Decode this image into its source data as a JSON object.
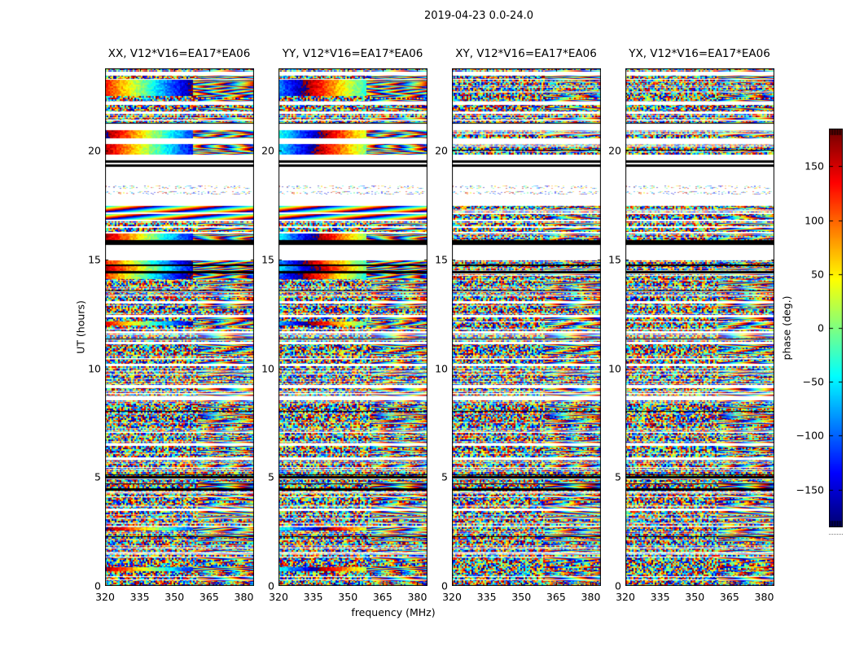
{
  "figure": {
    "title": "2019-04-23 0.0-24.0"
  },
  "chart_data": {
    "type": "heatmap",
    "title": "2019-04-23 0.0-24.0",
    "xlabel": "frequency (MHz)",
    "ylabel": "UT (hours)",
    "x_range": [
      320,
      384.4
    ],
    "xticks": [
      320,
      335,
      350,
      365,
      380
    ],
    "y_range": [
      0,
      23.78
    ],
    "yticks": [
      0,
      5,
      10,
      15,
      20
    ],
    "grid": false,
    "panels": [
      {
        "pol": "XX",
        "title": "XX, V12*V16=EA17*EA06"
      },
      {
        "pol": "YY",
        "title": "YY, V12*V16=EA17*EA06"
      },
      {
        "pol": "XY",
        "title": "XY, V12*V16=EA17*EA06"
      },
      {
        "pol": "YX",
        "title": "YX, V12*V16=EA17*EA06"
      }
    ],
    "colorbar": {
      "label": "phase (deg.)",
      "colormap": "jet",
      "range": [
        -185,
        185
      ],
      "ticks": [
        150,
        100,
        50,
        0,
        -50,
        -100,
        -150
      ],
      "tick_labels": [
        "150",
        "100",
        "50",
        "0",
        "−50",
        "−100",
        "−150"
      ]
    },
    "stripe_legend": {
      "n": "random phase noise (all panels)",
      "w": "white gap / no data",
      "b": "black row",
      "g": "coherent phase gradient with right-side fringes in XX and YY (noise in XY, YX)",
      "d": "diagonal phase fringes in XX and YY (noise in XY, YX)",
      "f": "faint sparse pale noise"
    },
    "stripes": [
      [
        23.78,
        23.63,
        "n"
      ],
      [
        23.63,
        23.45,
        "w"
      ],
      [
        23.45,
        23.3,
        "n"
      ],
      [
        23.3,
        23.26,
        "w"
      ],
      [
        23.26,
        22.51,
        "g"
      ],
      [
        22.51,
        22.25,
        "n"
      ],
      [
        22.25,
        22.1,
        "w"
      ],
      [
        22.1,
        21.8,
        "n"
      ],
      [
        21.8,
        21.69,
        "w"
      ],
      [
        21.69,
        21.24,
        "n"
      ],
      [
        21.24,
        20.94,
        "w"
      ],
      [
        20.94,
        20.57,
        "g"
      ],
      [
        20.57,
        20.31,
        "w"
      ],
      [
        20.31,
        19.82,
        "g"
      ],
      [
        19.82,
        19.56,
        "w"
      ],
      [
        19.56,
        19.45,
        "b"
      ],
      [
        19.45,
        19.37,
        "w"
      ],
      [
        19.37,
        19.26,
        "b"
      ],
      [
        19.26,
        18.4,
        "w"
      ],
      [
        18.4,
        18.25,
        "f"
      ],
      [
        18.25,
        18.14,
        "w"
      ],
      [
        18.14,
        17.99,
        "f"
      ],
      [
        17.99,
        17.46,
        "w"
      ],
      [
        17.46,
        17.16,
        "d"
      ],
      [
        17.16,
        17.09,
        "w"
      ],
      [
        17.09,
        16.83,
        "d"
      ],
      [
        16.83,
        16.75,
        "w"
      ],
      [
        16.75,
        16.53,
        "n"
      ],
      [
        16.53,
        16.45,
        "w"
      ],
      [
        16.45,
        16.27,
        "n"
      ],
      [
        16.27,
        16.19,
        "w"
      ],
      [
        16.19,
        15.89,
        "g"
      ],
      [
        15.89,
        15.67,
        "b"
      ],
      [
        15.67,
        14.96,
        "w"
      ],
      [
        14.96,
        14.77,
        "g"
      ],
      [
        14.77,
        14.7,
        "b"
      ],
      [
        14.7,
        14.47,
        "g"
      ],
      [
        14.47,
        14.36,
        "b"
      ],
      [
        14.36,
        14.1,
        "g"
      ],
      [
        14.1,
        13.91,
        "n"
      ],
      [
        13.91,
        13.09,
        "n"
      ],
      [
        13.09,
        12.98,
        "w"
      ],
      [
        12.98,
        12.45,
        "n"
      ],
      [
        12.45,
        12.34,
        "w"
      ],
      [
        12.34,
        12.15,
        "n"
      ],
      [
        12.15,
        11.97,
        "g"
      ],
      [
        11.97,
        11.7,
        "n"
      ],
      [
        11.7,
        11.59,
        "w"
      ],
      [
        11.59,
        10.21,
        "n"
      ],
      [
        10.21,
        10.1,
        "w"
      ],
      [
        10.1,
        9.24,
        "n"
      ],
      [
        9.24,
        9.09,
        "w"
      ],
      [
        9.09,
        8.71,
        "n"
      ],
      [
        8.71,
        8.53,
        "w"
      ],
      [
        8.53,
        7.48,
        "n"
      ],
      [
        7.48,
        6.55,
        "n"
      ],
      [
        6.55,
        6.43,
        "w"
      ],
      [
        6.43,
        5.91,
        "n"
      ],
      [
        5.91,
        5.8,
        "w"
      ],
      [
        5.8,
        5.05,
        "n"
      ],
      [
        5.05,
        4.94,
        "b"
      ],
      [
        4.94,
        4.49,
        "n"
      ],
      [
        4.49,
        4.38,
        "b"
      ],
      [
        4.38,
        3.55,
        "n"
      ],
      [
        3.55,
        3.44,
        "w"
      ],
      [
        3.44,
        2.69,
        "n"
      ],
      [
        2.69,
        2.54,
        "g"
      ],
      [
        2.54,
        1.8,
        "n"
      ],
      [
        1.8,
        0.86,
        "n"
      ],
      [
        0.86,
        0.66,
        "g"
      ],
      [
        0.66,
        0.45,
        "n"
      ],
      [
        0.45,
        0.4,
        "w"
      ],
      [
        0.4,
        0.0,
        "n"
      ]
    ]
  }
}
